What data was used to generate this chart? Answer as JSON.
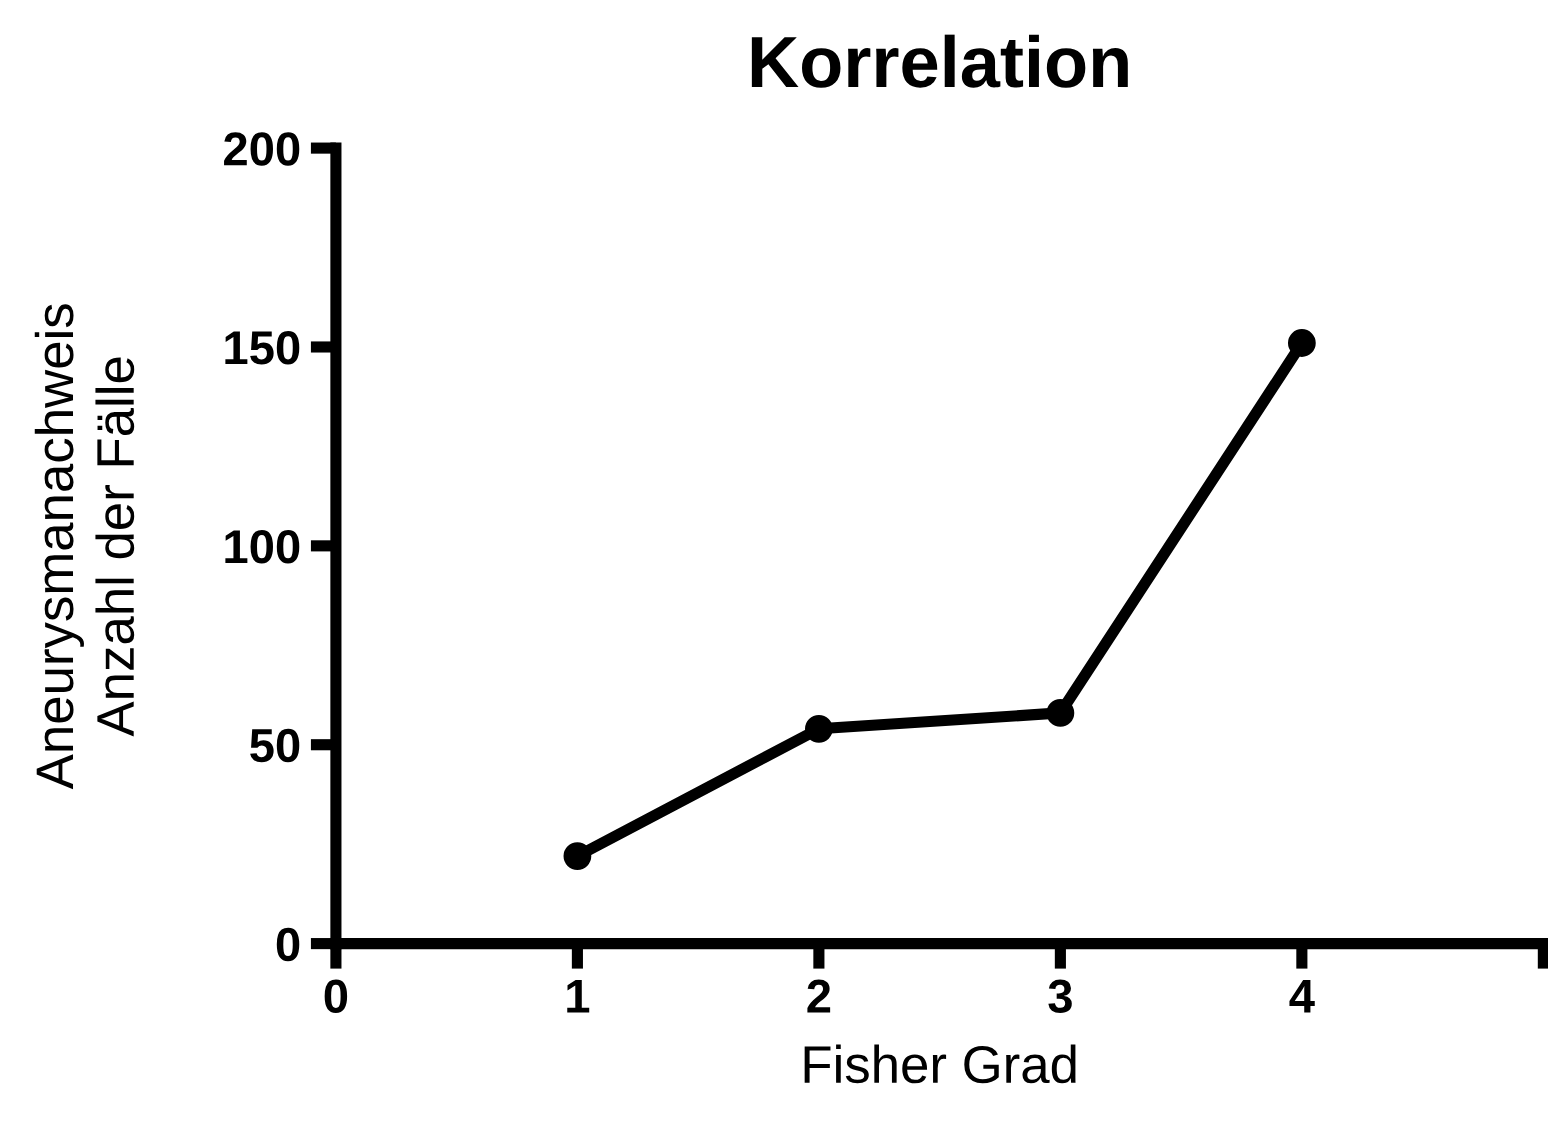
{
  "chart_data": {
    "type": "line",
    "title": "Korrelation",
    "xlabel": "Fisher Grad",
    "ylabel": "Aneurysmanachweis\nAnzahl der Fälle",
    "x": [
      1,
      2,
      3,
      4
    ],
    "series": [
      {
        "color": "#000000",
        "values": [
          22,
          54,
          58,
          151
        ]
      }
    ],
    "xlim": [
      0,
      5
    ],
    "xticks": [
      0,
      1,
      2,
      3,
      4,
      {
        "value": 5,
        "label": null
      }
    ],
    "ylim": [
      0,
      200
    ],
    "yticks": [
      0,
      50,
      100,
      150,
      200
    ],
    "marker": "circle",
    "line_style": "solid",
    "grid": false,
    "legend": false
  }
}
